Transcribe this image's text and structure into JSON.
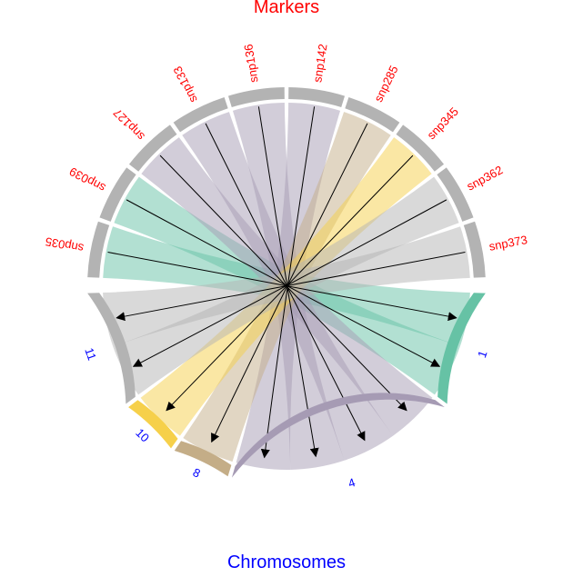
{
  "title_top": "Markers",
  "title_bottom": "Chromosomes",
  "top_label_color": "#ff0000",
  "bottom_label_color": "#0000ff",
  "markers": [
    {
      "label": "snp035",
      "color": "#66c2a5"
    },
    {
      "label": "snp039",
      "color": "#66c2a5"
    },
    {
      "label": "snp127",
      "color": "#a69bb4"
    },
    {
      "label": "snp133",
      "color": "#a69bb4"
    },
    {
      "label": "snp136",
      "color": "#a69bb4"
    },
    {
      "label": "snp142",
      "color": "#a69bb4"
    },
    {
      "label": "snp285",
      "color": "#c4ad87"
    },
    {
      "label": "snp345",
      "color": "#f6d04a"
    },
    {
      "label": "snp362",
      "color": "#b3b3b3"
    },
    {
      "label": "snp373",
      "color": "#b3b3b3"
    }
  ],
  "chromosomes": [
    {
      "label": "1",
      "color": "#66c2a5"
    },
    {
      "label": "4",
      "color": "#a69bb4"
    },
    {
      "label": "8",
      "color": "#c4ad87"
    },
    {
      "label": "10",
      "color": "#f6d04a"
    },
    {
      "label": "11",
      "color": "#b3b3b3"
    }
  ],
  "links": [
    {
      "marker": "snp035",
      "chromosome": "1"
    },
    {
      "marker": "snp039",
      "chromosome": "1"
    },
    {
      "marker": "snp127",
      "chromosome": "4"
    },
    {
      "marker": "snp133",
      "chromosome": "4"
    },
    {
      "marker": "snp136",
      "chromosome": "4"
    },
    {
      "marker": "snp142",
      "chromosome": "4"
    },
    {
      "marker": "snp285",
      "chromosome": "8"
    },
    {
      "marker": "snp345",
      "chromosome": "10"
    },
    {
      "marker": "snp362",
      "chromosome": "11"
    },
    {
      "marker": "snp373",
      "chromosome": "11"
    }
  ],
  "sector_color_top": "#b3b3b3"
}
